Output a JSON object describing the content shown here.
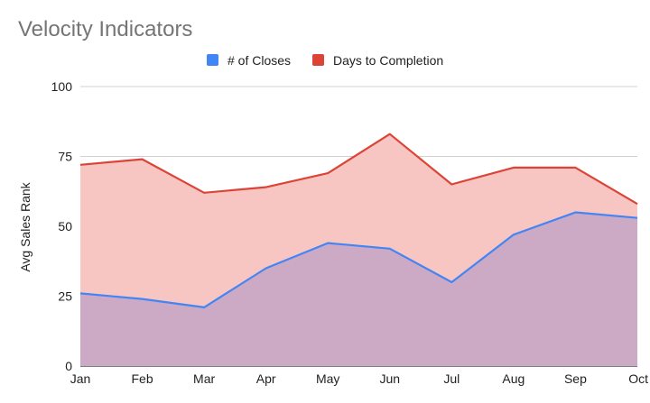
{
  "chart_data": {
    "type": "area",
    "title": "Velocity Indicators",
    "xlabel": "",
    "ylabel": "Avg Sales Rank",
    "ylim": [
      0,
      100
    ],
    "yticks": [
      0,
      25,
      50,
      75,
      100
    ],
    "grid": true,
    "legend_position": "top",
    "categories": [
      "Jan",
      "Feb",
      "Mar",
      "Apr",
      "May",
      "Jun",
      "Jul",
      "Aug",
      "Sep",
      "Oct"
    ],
    "series": [
      {
        "name": "# of Closes",
        "color": "#4285f4",
        "fill": "#c6a5c4",
        "values": [
          26,
          24,
          21,
          35,
          44,
          42,
          30,
          47,
          55,
          53
        ]
      },
      {
        "name": "Days to Completion",
        "color": "#db4437",
        "fill": "#f8c6c2",
        "values": [
          72,
          74,
          62,
          64,
          69,
          83,
          65,
          71,
          71,
          58
        ]
      }
    ]
  }
}
